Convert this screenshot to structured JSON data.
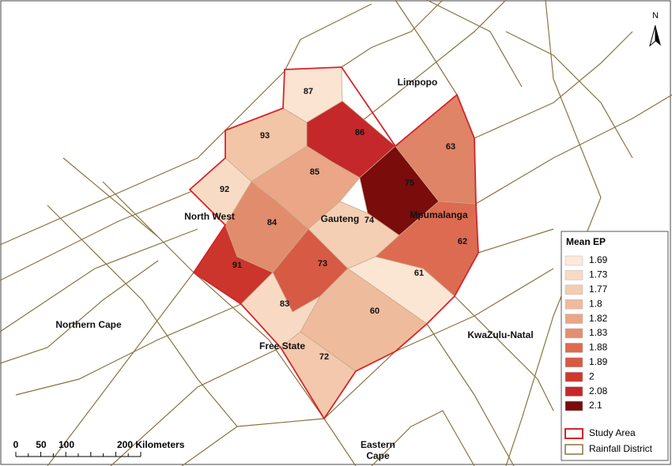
{
  "map": {
    "districts": [
      {
        "label": "87",
        "color": "#fbe4d2"
      },
      {
        "label": "86",
        "color": "#c5282a"
      },
      {
        "label": "93",
        "color": "#f2c5a7"
      },
      {
        "label": "92",
        "color": "#f8dbc5"
      },
      {
        "label": "85",
        "color": "#eaa687"
      },
      {
        "label": "75",
        "color": "#7a0c0c"
      },
      {
        "label": "63",
        "color": "#df8466"
      },
      {
        "label": "84",
        "color": "#e18c6c"
      },
      {
        "label": "74",
        "color": "#f4cfb4"
      },
      {
        "label": "62",
        "color": "#dc6b51"
      },
      {
        "label": "91",
        "color": "#cb352b"
      },
      {
        "label": "73",
        "color": "#d65a44"
      },
      {
        "label": "61",
        "color": "#fbe5d3"
      },
      {
        "label": "83",
        "color": "#f8d9c3"
      },
      {
        "label": "60",
        "color": "#efbb9d"
      },
      {
        "label": "72",
        "color": "#f3c8ac"
      }
    ],
    "provinces": [
      "Limpopo",
      "North West",
      "Gauteng",
      "Mpumalanga",
      "Northern Cape",
      "Free State",
      "KwaZulu-Natal",
      "Eastern Cape"
    ],
    "legend": {
      "title": "Mean EP",
      "items": [
        {
          "label": "1.69",
          "color": "#fce9da"
        },
        {
          "label": "1.73",
          "color": "#f8dac4"
        },
        {
          "label": "1.77",
          "color": "#f4ccb0"
        },
        {
          "label": "1.8",
          "color": "#efbb9d"
        },
        {
          "label": "1.82",
          "color": "#eaa687"
        },
        {
          "label": "1.83",
          "color": "#e29070"
        },
        {
          "label": "1.88",
          "color": "#dc6b51"
        },
        {
          "label": "1.89",
          "color": "#d65a44"
        },
        {
          "label": "2",
          "color": "#cd3a2e"
        },
        {
          "label": "2.08",
          "color": "#c5282a"
        },
        {
          "label": "2.1",
          "color": "#7a0c0c"
        }
      ],
      "study_area": "Study Area",
      "rainfall_district": "Rainfall District"
    },
    "scale_bar": [
      "0",
      "50",
      "100",
      "200 Kilometers"
    ],
    "north": "N"
  }
}
